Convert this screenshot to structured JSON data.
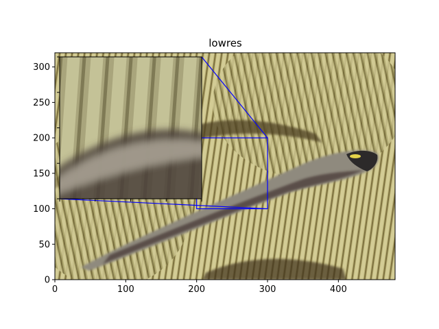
{
  "chart_data": {
    "type": "image",
    "title": "lowres",
    "xlim": [
      0,
      480
    ],
    "ylim": [
      0,
      320
    ],
    "x_ticks": [
      0,
      100,
      200,
      300,
      400
    ],
    "y_ticks": [
      0,
      50,
      100,
      150,
      200,
      250,
      300
    ],
    "zoom_region": {
      "x": [
        200,
        300
      ],
      "y": [
        100,
        200
      ]
    },
    "inset": {
      "show_ticks": true,
      "tick_labels": false
    },
    "colors": {
      "indicator": "#0000ff",
      "coral_light": "#c8c089",
      "coral_mid": "#a39a5c",
      "coral_dark": "#5c4f2c",
      "fish_body": "#8f8a7e",
      "fish_shadow": "#4a3a38"
    }
  }
}
